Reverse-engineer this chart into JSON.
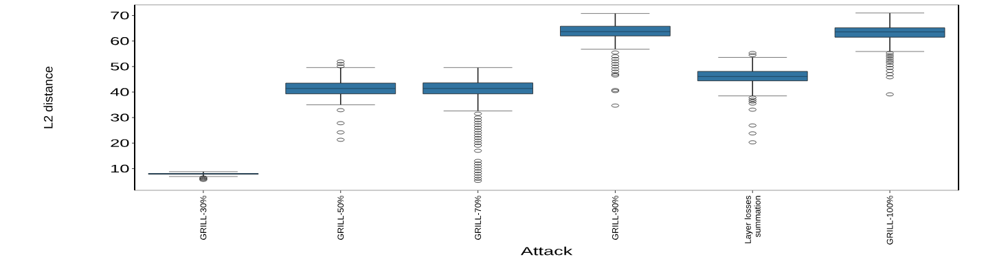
{
  "chart_data": {
    "type": "box",
    "xlabel": "Attack",
    "ylabel": "L2 distance",
    "color": "#3274a1",
    "categories": [
      "GRILL-30%",
      "GRILL-50%",
      "GRILL-70%",
      "GRILL-90%",
      "Layer losses summation",
      "GRILL-100%"
    ],
    "boxes": [
      {
        "low": 6.9,
        "q1": 7.8,
        "median": 8.0,
        "q3": 8.1,
        "high": 8.8,
        "outliers": [
          6.5,
          6.2,
          5.9,
          5.6
        ]
      },
      {
        "low": 35.0,
        "q1": 39.3,
        "median": 41.4,
        "q3": 43.5,
        "high": 49.6,
        "outliers": [
          52.0,
          51.0,
          50.1,
          32.9,
          27.8,
          24.2,
          21.3
        ]
      },
      {
        "low": 32.6,
        "q1": 39.3,
        "median": 41.4,
        "q3": 43.6,
        "high": 49.6,
        "outliers": [
          31.5,
          30,
          29,
          28,
          27,
          26,
          25,
          24,
          23,
          22,
          21,
          20,
          19,
          17.0,
          13,
          12,
          11,
          10,
          9,
          8,
          7,
          6,
          5.2
        ]
      },
      {
        "low": 56.8,
        "q1": 62.0,
        "median": 63.7,
        "q3": 65.8,
        "high": 70.8,
        "outliers": [
          55.5,
          54,
          53,
          52,
          51,
          50,
          49,
          48,
          47,
          46.5,
          40.8,
          40.4,
          34.7
        ]
      },
      {
        "low": 38.5,
        "q1": 44.4,
        "median": 46.1,
        "q3": 48.1,
        "high": 53.6,
        "outliers": [
          55.3,
          54.5,
          37.8,
          37,
          36.3,
          35.5,
          33.1,
          26.9,
          23.8,
          20.3
        ]
      },
      {
        "low": 55.9,
        "q1": 61.5,
        "median": 63.6,
        "q3": 65.2,
        "high": 71.0,
        "outliers": [
          55.3,
          54.5,
          53.8,
          53,
          52.2,
          51.5,
          50.5,
          49.5,
          48.3,
          47,
          45.8,
          39.1
        ]
      }
    ],
    "ylim": [
      1.5,
      74.2
    ],
    "yticks": [
      10,
      20,
      30,
      40,
      50,
      60,
      70
    ]
  }
}
